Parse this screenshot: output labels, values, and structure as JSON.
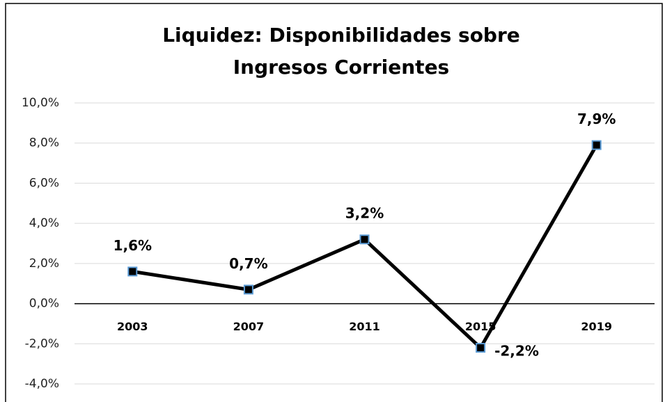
{
  "chart_data": {
    "type": "line",
    "title": "Liquidez: Disponibilidades sobre Ingresos Corrientes",
    "categories": [
      "2003",
      "2007",
      "2011",
      "2015",
      "2019"
    ],
    "series": [
      {
        "name": "Liquidez",
        "color": "#000000",
        "marker_edge": "#5b9bd5",
        "values": [
          1.6,
          0.7,
          3.2,
          -2.2,
          7.9
        ],
        "value_labels": [
          "1,6%",
          "0,7%",
          "3,2%",
          "-2,2%",
          "7,9%"
        ]
      }
    ],
    "ylim": [
      -4,
      10
    ],
    "yticks": [
      {
        "value": -4,
        "label": "-4,0%"
      },
      {
        "value": -2,
        "label": "-2,0%"
      },
      {
        "value": 0,
        "label": "0,0%"
      },
      {
        "value": 2,
        "label": "2,0%"
      },
      {
        "value": 4,
        "label": "4,0%"
      },
      {
        "value": 6,
        "label": "6,0%"
      },
      {
        "value": 8,
        "label": "8,0%"
      },
      {
        "value": 10,
        "label": "10,0%"
      }
    ],
    "grid": true
  }
}
